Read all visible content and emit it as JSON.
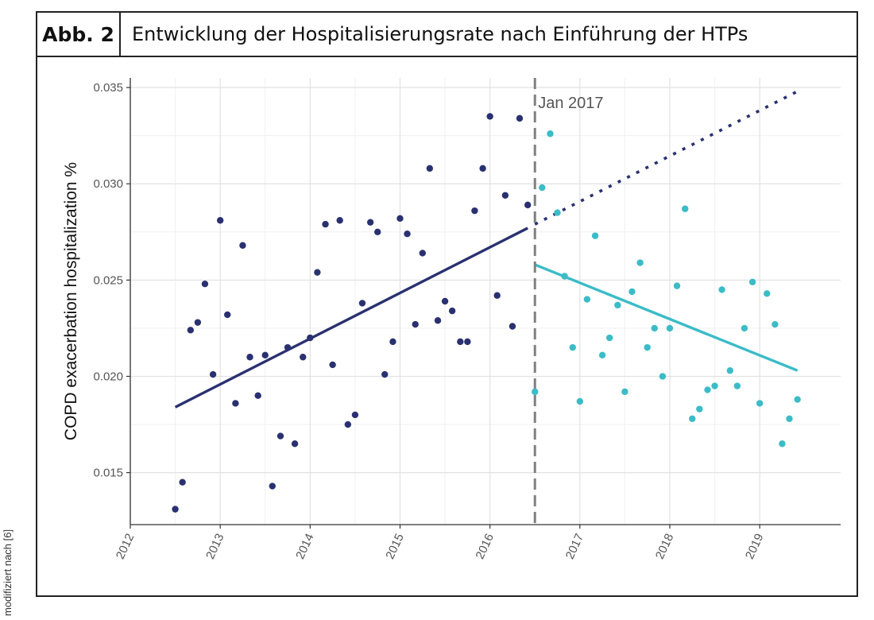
{
  "figure": {
    "number_label": "Abb. 2",
    "title": "Entwicklung der Hospitalisierungsrate nach Einführung der HTPs",
    "side_note": "modifiziert nach [6]"
  },
  "chart_data": {
    "type": "scatter",
    "xlabel": "",
    "ylabel": "COPD exacerbation hospitalization %",
    "xlim": [
      2012,
      2019.9
    ],
    "ylim": [
      0.0123,
      0.0355
    ],
    "x_ticks": [
      2012,
      2013,
      2014,
      2015,
      2016,
      2017,
      2018,
      2019
    ],
    "y_ticks": [
      0.015,
      0.02,
      0.025,
      0.03,
      0.035
    ],
    "y_tick_labels": [
      "0.015",
      "0.020",
      "0.025",
      "0.030",
      "0.035"
    ],
    "grid": true,
    "legend": "none",
    "colors": {
      "pre": "#2a3170",
      "post": "#3bbcc7",
      "divider": "#808080"
    },
    "intervention": {
      "x": 2016.5,
      "label": "Jan 2017"
    },
    "series": [
      {
        "key": "pre",
        "x": [
          2012.5,
          2012.58,
          2012.67,
          2012.75,
          2012.83,
          2012.92,
          2013.0,
          2013.08,
          2013.17,
          2013.25,
          2013.33,
          2013.42,
          2013.5,
          2013.58,
          2013.67,
          2013.75,
          2013.83,
          2013.92,
          2014.0,
          2014.08,
          2014.17,
          2014.25,
          2014.33,
          2014.42,
          2014.5,
          2014.58,
          2014.67,
          2014.75,
          2014.83,
          2014.92,
          2015.0,
          2015.08,
          2015.17,
          2015.25,
          2015.33,
          2015.42,
          2015.5,
          2015.58,
          2015.67,
          2015.75,
          2015.83,
          2015.92,
          2016.0,
          2016.08,
          2016.17,
          2016.25,
          2016.33,
          2016.42
        ],
        "y": [
          0.0131,
          0.0145,
          0.0224,
          0.0228,
          0.0248,
          0.0201,
          0.0281,
          0.0232,
          0.0186,
          0.0268,
          0.021,
          0.019,
          0.0211,
          0.0143,
          0.0169,
          0.0215,
          0.0165,
          0.021,
          0.022,
          0.0254,
          0.0279,
          0.0206,
          0.0281,
          0.0175,
          0.018,
          0.0238,
          0.028,
          0.0275,
          0.0201,
          0.0218,
          0.0282,
          0.0274,
          0.0227,
          0.0264,
          0.0308,
          0.0229,
          0.0239,
          0.0234,
          0.0218,
          0.0218,
          0.0286,
          0.0308,
          0.0335,
          0.0242,
          0.0294,
          0.0226,
          0.0334,
          0.0289
        ]
      },
      {
        "key": "post",
        "x": [
          2016.5,
          2016.58,
          2016.67,
          2016.75,
          2016.83,
          2016.92,
          2017.0,
          2017.08,
          2017.17,
          2017.25,
          2017.33,
          2017.42,
          2017.5,
          2017.58,
          2017.67,
          2017.75,
          2017.83,
          2017.92,
          2018.0,
          2018.08,
          2018.17,
          2018.25,
          2018.33,
          2018.42,
          2018.5,
          2018.58,
          2018.67,
          2018.75,
          2018.83,
          2018.92,
          2019.0,
          2019.08,
          2019.17,
          2019.25,
          2019.33,
          2019.42
        ],
        "y": [
          0.0192,
          0.0298,
          0.0326,
          0.0285,
          0.0252,
          0.0215,
          0.0187,
          0.024,
          0.0273,
          0.0211,
          0.022,
          0.0237,
          0.0192,
          0.0244,
          0.0259,
          0.0215,
          0.0225,
          0.02,
          0.0225,
          0.0247,
          0.0287,
          0.0178,
          0.0183,
          0.0193,
          0.0195,
          0.0245,
          0.0203,
          0.0195,
          0.0225,
          0.0249,
          0.0186,
          0.0243,
          0.0227,
          0.0165,
          0.0178,
          0.0188
        ]
      }
    ],
    "trend_lines": [
      {
        "key": "pre",
        "style": "solid",
        "x": [
          2012.5,
          2016.42
        ],
        "y": [
          0.0184,
          0.0277
        ]
      },
      {
        "key": "pre",
        "style": "dotted",
        "x": [
          2016.5,
          2019.42
        ],
        "y": [
          0.0279,
          0.0348
        ]
      },
      {
        "key": "post",
        "style": "solid",
        "x": [
          2016.5,
          2019.42
        ],
        "y": [
          0.0258,
          0.0203
        ]
      }
    ]
  }
}
